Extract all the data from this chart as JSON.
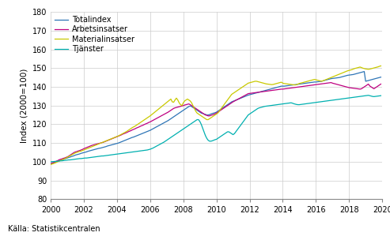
{
  "title": "",
  "ylabel": "Index (2000=100)",
  "xlabel": "",
  "source": "Källa: Statistikcentralen",
  "ylim": [
    80,
    180
  ],
  "xlim": [
    2000,
    2020
  ],
  "yticks": [
    80,
    90,
    100,
    110,
    120,
    130,
    140,
    150,
    160,
    170,
    180
  ],
  "xticks": [
    2000,
    2002,
    2004,
    2006,
    2008,
    2010,
    2012,
    2014,
    2016,
    2018,
    2020
  ],
  "legend": [
    "Totalindex",
    "Arbetsinsatser",
    "Materialinsatser",
    "Tjänster"
  ],
  "colors": {
    "Totalindex": "#2e75b6",
    "Arbetsinsatser": "#bf0080",
    "Materialinsatser": "#c9c900",
    "Tjänster": "#00b0b0"
  },
  "series": {
    "years": [
      2000.0,
      2000.083,
      2000.167,
      2000.25,
      2000.333,
      2000.417,
      2000.5,
      2000.583,
      2000.667,
      2000.75,
      2000.833,
      2000.917,
      2001.0,
      2001.083,
      2001.167,
      2001.25,
      2001.333,
      2001.417,
      2001.5,
      2001.583,
      2001.667,
      2001.75,
      2001.833,
      2001.917,
      2002.0,
      2002.083,
      2002.167,
      2002.25,
      2002.333,
      2002.417,
      2002.5,
      2002.583,
      2002.667,
      2002.75,
      2002.833,
      2002.917,
      2003.0,
      2003.083,
      2003.167,
      2003.25,
      2003.333,
      2003.417,
      2003.5,
      2003.583,
      2003.667,
      2003.75,
      2003.833,
      2003.917,
      2004.0,
      2004.083,
      2004.167,
      2004.25,
      2004.333,
      2004.417,
      2004.5,
      2004.583,
      2004.667,
      2004.75,
      2004.833,
      2004.917,
      2005.0,
      2005.083,
      2005.167,
      2005.25,
      2005.333,
      2005.417,
      2005.5,
      2005.583,
      2005.667,
      2005.75,
      2005.833,
      2005.917,
      2006.0,
      2006.083,
      2006.167,
      2006.25,
      2006.333,
      2006.417,
      2006.5,
      2006.583,
      2006.667,
      2006.75,
      2006.833,
      2006.917,
      2007.0,
      2007.083,
      2007.167,
      2007.25,
      2007.333,
      2007.417,
      2007.5,
      2007.583,
      2007.667,
      2007.75,
      2007.833,
      2007.917,
      2008.0,
      2008.083,
      2008.167,
      2008.25,
      2008.333,
      2008.417,
      2008.5,
      2008.583,
      2008.667,
      2008.75,
      2008.833,
      2008.917,
      2009.0,
      2009.083,
      2009.167,
      2009.25,
      2009.333,
      2009.417,
      2009.5,
      2009.583,
      2009.667,
      2009.75,
      2009.833,
      2009.917,
      2010.0,
      2010.083,
      2010.167,
      2010.25,
      2010.333,
      2010.417,
      2010.5,
      2010.583,
      2010.667,
      2010.75,
      2010.833,
      2010.917,
      2011.0,
      2011.083,
      2011.167,
      2011.25,
      2011.333,
      2011.417,
      2011.5,
      2011.583,
      2011.667,
      2011.75,
      2011.833,
      2011.917,
      2012.0,
      2012.083,
      2012.167,
      2012.25,
      2012.333,
      2012.417,
      2012.5,
      2012.583,
      2012.667,
      2012.75,
      2012.833,
      2012.917,
      2013.0,
      2013.083,
      2013.167,
      2013.25,
      2013.333,
      2013.417,
      2013.5,
      2013.583,
      2013.667,
      2013.75,
      2013.833,
      2013.917,
      2014.0,
      2014.083,
      2014.167,
      2014.25,
      2014.333,
      2014.417,
      2014.5,
      2014.583,
      2014.667,
      2014.75,
      2014.833,
      2014.917,
      2015.0,
      2015.083,
      2015.167,
      2015.25,
      2015.333,
      2015.417,
      2015.5,
      2015.583,
      2015.667,
      2015.75,
      2015.833,
      2015.917,
      2016.0,
      2016.083,
      2016.167,
      2016.25,
      2016.333,
      2016.417,
      2016.5,
      2016.583,
      2016.667,
      2016.75,
      2016.833,
      2016.917,
      2017.0,
      2017.083,
      2017.167,
      2017.25,
      2017.333,
      2017.417,
      2017.5,
      2017.583,
      2017.667,
      2017.75,
      2017.833,
      2017.917,
      2018.0,
      2018.083,
      2018.167,
      2018.25,
      2018.333,
      2018.417,
      2018.5,
      2018.583,
      2018.667,
      2018.75,
      2018.833,
      2018.917,
      2019.0,
      2019.083,
      2019.167,
      2019.25,
      2019.333,
      2019.417,
      2019.5,
      2019.583,
      2019.667,
      2019.75,
      2019.833,
      2019.917
    ],
    "Totalindex": [
      99.0,
      99.2,
      99.5,
      99.8,
      100.0,
      100.3,
      100.5,
      100.7,
      101.0,
      101.2,
      101.5,
      101.8,
      102.0,
      102.3,
      102.5,
      102.8,
      103.0,
      103.3,
      103.6,
      103.8,
      104.0,
      104.2,
      104.5,
      104.7,
      104.9,
      105.1,
      105.3,
      105.6,
      105.8,
      106.0,
      106.2,
      106.4,
      106.6,
      106.8,
      107.0,
      107.2,
      107.3,
      107.5,
      107.7,
      107.9,
      108.1,
      108.4,
      108.6,
      108.8,
      109.0,
      109.2,
      109.4,
      109.6,
      109.8,
      110.0,
      110.3,
      110.6,
      110.9,
      111.2,
      111.5,
      111.8,
      112.1,
      112.4,
      112.7,
      113.0,
      113.2,
      113.5,
      113.8,
      114.1,
      114.4,
      114.7,
      115.0,
      115.3,
      115.6,
      115.9,
      116.2,
      116.5,
      116.8,
      117.2,
      117.6,
      118.0,
      118.4,
      118.8,
      119.2,
      119.6,
      120.0,
      120.4,
      120.8,
      121.2,
      121.6,
      122.0,
      122.5,
      123.0,
      123.5,
      124.0,
      124.5,
      125.0,
      125.5,
      126.0,
      126.5,
      127.0,
      127.5,
      128.0,
      128.5,
      129.0,
      129.5,
      129.8,
      129.5,
      129.0,
      128.5,
      128.0,
      127.5,
      127.0,
      126.5,
      126.0,
      125.8,
      125.5,
      125.3,
      125.0,
      125.0,
      125.2,
      125.5,
      125.8,
      126.0,
      126.2,
      126.5,
      127.0,
      127.5,
      128.0,
      128.5,
      129.0,
      129.5,
      130.0,
      130.5,
      131.0,
      131.5,
      132.0,
      132.3,
      132.6,
      132.9,
      133.2,
      133.5,
      133.8,
      134.1,
      134.4,
      134.7,
      135.0,
      135.3,
      135.6,
      135.8,
      136.0,
      136.2,
      136.4,
      136.6,
      136.8,
      137.0,
      137.2,
      137.4,
      137.6,
      137.8,
      138.0,
      138.2,
      138.4,
      138.6,
      138.8,
      139.0,
      139.2,
      139.4,
      139.6,
      139.8,
      140.0,
      140.2,
      140.4,
      140.4,
      140.4,
      140.5,
      140.6,
      140.7,
      140.8,
      140.9,
      141.0,
      141.1,
      141.2,
      141.3,
      141.4,
      141.5,
      141.6,
      141.7,
      141.8,
      141.9,
      142.0,
      142.1,
      142.2,
      142.3,
      142.4,
      142.5,
      142.6,
      142.6,
      142.7,
      142.8,
      142.9,
      143.0,
      143.2,
      143.4,
      143.6,
      143.8,
      144.0,
      144.2,
      144.4,
      144.5,
      144.6,
      144.7,
      144.8,
      144.9,
      145.0,
      145.2,
      145.4,
      145.6,
      145.8,
      146.0,
      146.2,
      146.3,
      146.4,
      146.5,
      146.6,
      146.8,
      147.0,
      147.2,
      147.4,
      147.6,
      147.8,
      148.0,
      148.2,
      143.0,
      143.2,
      143.4,
      143.6,
      143.8,
      144.0,
      144.2,
      144.4,
      144.6,
      144.8,
      145.0,
      145.2
    ],
    "Arbetsinsatser": [
      99.0,
      99.3,
      99.6,
      100.0,
      100.3,
      100.6,
      101.0,
      101.3,
      101.5,
      101.8,
      102.0,
      102.3,
      102.6,
      103.0,
      103.5,
      104.0,
      104.5,
      105.0,
      105.3,
      105.5,
      105.8,
      106.0,
      106.3,
      106.6,
      107.0,
      107.3,
      107.6,
      107.9,
      108.2,
      108.5,
      108.8,
      109.0,
      109.2,
      109.4,
      109.6,
      109.8,
      110.0,
      110.2,
      110.4,
      110.7,
      111.0,
      111.3,
      111.6,
      111.9,
      112.2,
      112.5,
      112.8,
      113.1,
      113.4,
      113.7,
      114.0,
      114.3,
      114.7,
      115.0,
      115.3,
      115.6,
      116.0,
      116.3,
      116.6,
      117.0,
      117.3,
      117.6,
      118.0,
      118.3,
      118.6,
      119.0,
      119.3,
      119.6,
      120.0,
      120.3,
      120.6,
      121.0,
      121.3,
      121.7,
      122.1,
      122.5,
      122.9,
      123.3,
      123.7,
      124.1,
      124.5,
      124.9,
      125.3,
      125.7,
      126.1,
      126.5,
      127.0,
      127.5,
      128.0,
      128.5,
      128.8,
      129.0,
      129.2,
      129.4,
      129.6,
      129.8,
      130.0,
      130.3,
      130.5,
      130.7,
      130.9,
      130.5,
      130.0,
      129.5,
      129.0,
      128.5,
      128.0,
      127.5,
      127.0,
      126.5,
      126.0,
      125.5,
      125.0,
      124.8,
      124.5,
      124.5,
      124.8,
      125.0,
      125.3,
      125.6,
      126.0,
      126.5,
      127.0,
      127.5,
      128.0,
      128.5,
      129.0,
      129.5,
      130.0,
      130.5,
      131.0,
      131.5,
      132.0,
      132.4,
      132.8,
      133.2,
      133.6,
      134.0,
      134.4,
      134.8,
      135.2,
      135.6,
      136.0,
      136.4,
      136.5,
      136.6,
      136.7,
      136.8,
      136.9,
      137.0,
      137.1,
      137.2,
      137.3,
      137.4,
      137.5,
      137.6,
      137.7,
      137.8,
      137.9,
      138.0,
      138.1,
      138.2,
      138.3,
      138.4,
      138.5,
      138.6,
      138.7,
      138.8,
      138.8,
      138.9,
      139.0,
      139.1,
      139.2,
      139.3,
      139.4,
      139.5,
      139.6,
      139.7,
      139.8,
      139.9,
      140.0,
      140.1,
      140.2,
      140.3,
      140.4,
      140.5,
      140.6,
      140.7,
      140.8,
      140.9,
      141.0,
      141.1,
      141.2,
      141.3,
      141.4,
      141.5,
      141.6,
      141.7,
      141.8,
      141.9,
      142.0,
      142.1,
      142.2,
      142.3,
      142.0,
      141.8,
      141.6,
      141.4,
      141.2,
      141.0,
      140.8,
      140.6,
      140.4,
      140.2,
      140.0,
      139.8,
      139.6,
      139.5,
      139.4,
      139.3,
      139.2,
      139.1,
      139.0,
      138.9,
      138.8,
      139.0,
      139.5,
      140.0,
      140.5,
      141.0,
      141.5,
      140.5,
      140.0,
      139.5,
      139.0,
      139.5,
      140.0,
      140.5,
      141.0,
      141.5
    ],
    "Materialinsatser": [
      98.5,
      98.8,
      99.0,
      99.3,
      99.6,
      100.0,
      100.3,
      100.6,
      101.0,
      101.3,
      101.6,
      102.0,
      102.4,
      102.8,
      103.2,
      103.6,
      104.0,
      104.4,
      104.8,
      105.0,
      105.3,
      105.5,
      105.7,
      106.0,
      106.3,
      106.6,
      106.9,
      107.2,
      107.5,
      107.8,
      108.1,
      108.4,
      108.7,
      109.0,
      109.3,
      109.6,
      109.9,
      110.2,
      110.5,
      110.8,
      111.1,
      111.4,
      111.7,
      112.0,
      112.3,
      112.6,
      112.9,
      113.2,
      113.5,
      113.8,
      114.2,
      114.6,
      115.0,
      115.4,
      115.8,
      116.2,
      116.7,
      117.2,
      117.7,
      118.2,
      118.6,
      119.0,
      119.5,
      120.0,
      120.5,
      121.0,
      121.5,
      122.0,
      122.5,
      123.0,
      123.5,
      124.0,
      124.5,
      125.1,
      125.7,
      126.3,
      126.9,
      127.5,
      128.1,
      128.7,
      129.3,
      129.9,
      130.5,
      131.1,
      131.7,
      132.3,
      132.9,
      133.5,
      132.0,
      131.8,
      133.0,
      134.0,
      133.0,
      131.5,
      130.5,
      130.0,
      131.5,
      132.5,
      133.0,
      133.5,
      133.0,
      132.5,
      131.5,
      130.0,
      128.5,
      127.0,
      126.0,
      125.5,
      125.0,
      124.5,
      124.0,
      123.5,
      123.0,
      122.5,
      122.5,
      123.0,
      123.5,
      124.0,
      124.5,
      125.0,
      125.5,
      126.0,
      127.0,
      128.0,
      129.0,
      130.0,
      131.0,
      132.0,
      133.0,
      134.0,
      135.0,
      136.0,
      136.5,
      137.0,
      137.5,
      138.0,
      138.5,
      139.0,
      139.5,
      140.0,
      140.5,
      141.0,
      141.5,
      142.0,
      142.2,
      142.4,
      142.6,
      142.8,
      143.0,
      143.0,
      142.8,
      142.6,
      142.4,
      142.2,
      142.0,
      141.8,
      141.6,
      141.5,
      141.4,
      141.3,
      141.2,
      141.3,
      141.5,
      141.7,
      141.9,
      142.1,
      142.3,
      142.5,
      142.0,
      141.8,
      141.7,
      141.6,
      141.5,
      141.4,
      141.3,
      141.2,
      141.1,
      141.0,
      141.2,
      141.5,
      141.8,
      142.0,
      142.2,
      142.4,
      142.6,
      142.8,
      143.0,
      143.2,
      143.4,
      143.6,
      143.8,
      144.0,
      143.8,
      143.6,
      143.4,
      143.2,
      143.0,
      143.2,
      143.5,
      143.8,
      144.1,
      144.4,
      144.7,
      145.0,
      145.3,
      145.6,
      145.9,
      146.2,
      146.5,
      146.8,
      147.1,
      147.4,
      147.7,
      148.0,
      148.3,
      148.6,
      148.8,
      149.0,
      149.2,
      149.5,
      149.8,
      150.0,
      150.2,
      150.4,
      150.6,
      150.3,
      150.0,
      149.8,
      149.6,
      149.5,
      149.4,
      149.5,
      149.7,
      149.9,
      150.1,
      150.3,
      150.5,
      150.7,
      151.0,
      151.2
    ],
    "Tjanster": [
      100.0,
      100.1,
      100.1,
      100.2,
      100.2,
      100.3,
      100.4,
      100.5,
      100.5,
      100.6,
      100.7,
      100.8,
      100.9,
      101.0,
      101.0,
      101.1,
      101.2,
      101.3,
      101.4,
      101.5,
      101.6,
      101.7,
      101.7,
      101.8,
      101.9,
      102.0,
      102.0,
      102.1,
      102.2,
      102.3,
      102.4,
      102.5,
      102.6,
      102.7,
      102.8,
      102.9,
      103.0,
      103.1,
      103.1,
      103.2,
      103.3,
      103.4,
      103.5,
      103.6,
      103.7,
      103.8,
      103.9,
      104.0,
      104.1,
      104.2,
      104.3,
      104.4,
      104.5,
      104.6,
      104.7,
      104.8,
      104.9,
      105.0,
      105.1,
      105.2,
      105.3,
      105.4,
      105.5,
      105.6,
      105.7,
      105.8,
      105.9,
      106.0,
      106.1,
      106.2,
      106.3,
      106.5,
      106.7,
      107.0,
      107.3,
      107.7,
      108.1,
      108.5,
      108.9,
      109.3,
      109.7,
      110.1,
      110.5,
      111.0,
      111.5,
      112.0,
      112.5,
      113.0,
      113.5,
      114.0,
      114.5,
      115.0,
      115.5,
      116.0,
      116.5,
      117.0,
      117.5,
      118.0,
      118.5,
      119.0,
      119.5,
      120.0,
      120.5,
      121.0,
      121.5,
      122.0,
      122.5,
      122.5,
      121.5,
      120.0,
      118.0,
      116.0,
      114.0,
      112.5,
      111.5,
      111.0,
      111.0,
      111.2,
      111.5,
      111.8,
      112.0,
      112.5,
      113.0,
      113.5,
      114.0,
      114.5,
      115.0,
      115.5,
      116.0,
      116.0,
      115.5,
      115.0,
      114.5,
      115.0,
      116.0,
      117.0,
      118.0,
      119.0,
      120.0,
      121.0,
      122.0,
      123.0,
      124.0,
      125.0,
      125.5,
      126.0,
      126.5,
      127.0,
      127.5,
      128.0,
      128.5,
      128.8,
      129.0,
      129.2,
      129.4,
      129.6,
      129.7,
      129.8,
      129.9,
      130.0,
      130.1,
      130.2,
      130.3,
      130.4,
      130.5,
      130.6,
      130.7,
      130.8,
      130.9,
      131.0,
      131.1,
      131.2,
      131.3,
      131.4,
      131.5,
      131.3,
      131.0,
      130.8,
      130.6,
      130.5,
      130.5,
      130.6,
      130.7,
      130.8,
      130.9,
      131.0,
      131.1,
      131.2,
      131.3,
      131.4,
      131.5,
      131.6,
      131.7,
      131.8,
      131.9,
      132.0,
      132.1,
      132.2,
      132.3,
      132.4,
      132.5,
      132.6,
      132.7,
      132.8,
      132.9,
      133.0,
      133.1,
      133.2,
      133.3,
      133.4,
      133.5,
      133.6,
      133.7,
      133.8,
      133.9,
      134.0,
      134.1,
      134.2,
      134.3,
      134.4,
      134.5,
      134.6,
      134.7,
      134.8,
      134.9,
      135.0,
      135.1,
      135.2,
      135.3,
      135.4,
      135.5,
      135.3,
      135.1,
      134.9,
      134.8,
      134.9,
      135.0,
      135.1,
      135.2,
      135.3
    ]
  }
}
